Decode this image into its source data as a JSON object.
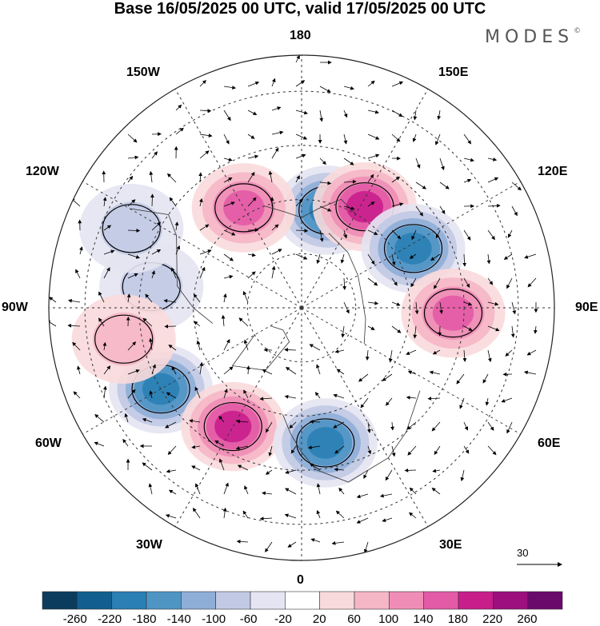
{
  "title": "Base 16/05/2025 00 UTC, valid 17/05/2025 00 UTC",
  "brand": "MODES",
  "brand_mark": "©",
  "longitude_labels": {
    "top": "180",
    "bottom": "0",
    "left": "90W",
    "right": "90E",
    "ul1": "150W",
    "ul2": "120W",
    "ur1": "150E",
    "ur2": "120E",
    "ll1": "60W",
    "ll2": "30W",
    "lr1": "60E",
    "lr2": "30E"
  },
  "reference_vector": "30",
  "colorbar": {
    "ticks": [
      "-260",
      "-220",
      "-180",
      "-140",
      "-100",
      "-60",
      "-20",
      "20",
      "60",
      "100",
      "140",
      "180",
      "220",
      "260"
    ],
    "colors": [
      "#0b3c5d",
      "#125f8f",
      "#2a7fb4",
      "#4e95c4",
      "#8eaed7",
      "#c1c9e4",
      "#e4e4f2",
      "#ffffff",
      "#f9dadc",
      "#f5b6c6",
      "#f08db6",
      "#e35aa6",
      "#c81e8c",
      "#9c0f7d",
      "#6a0a6b"
    ]
  },
  "anomalies": [
    {
      "lon": 165,
      "lat": 62,
      "value": -200
    },
    {
      "lon": -150,
      "lat": 58,
      "value": 150
    },
    {
      "lon": 148,
      "lat": 57,
      "value": 170
    },
    {
      "lon": 118,
      "lat": 55,
      "value": -180
    },
    {
      "lon": 88,
      "lat": 48,
      "value": 140
    },
    {
      "lon": -98,
      "lat": 48,
      "value": -80
    },
    {
      "lon": -60,
      "lat": 45,
      "value": -180
    },
    {
      "lon": -30,
      "lat": 52,
      "value": 200
    },
    {
      "lon": 10,
      "lat": 52,
      "value": -180
    },
    {
      "lon": -115,
      "lat": 38,
      "value": -70
    },
    {
      "lon": -80,
      "lat": 40,
      "value": 80
    }
  ]
}
